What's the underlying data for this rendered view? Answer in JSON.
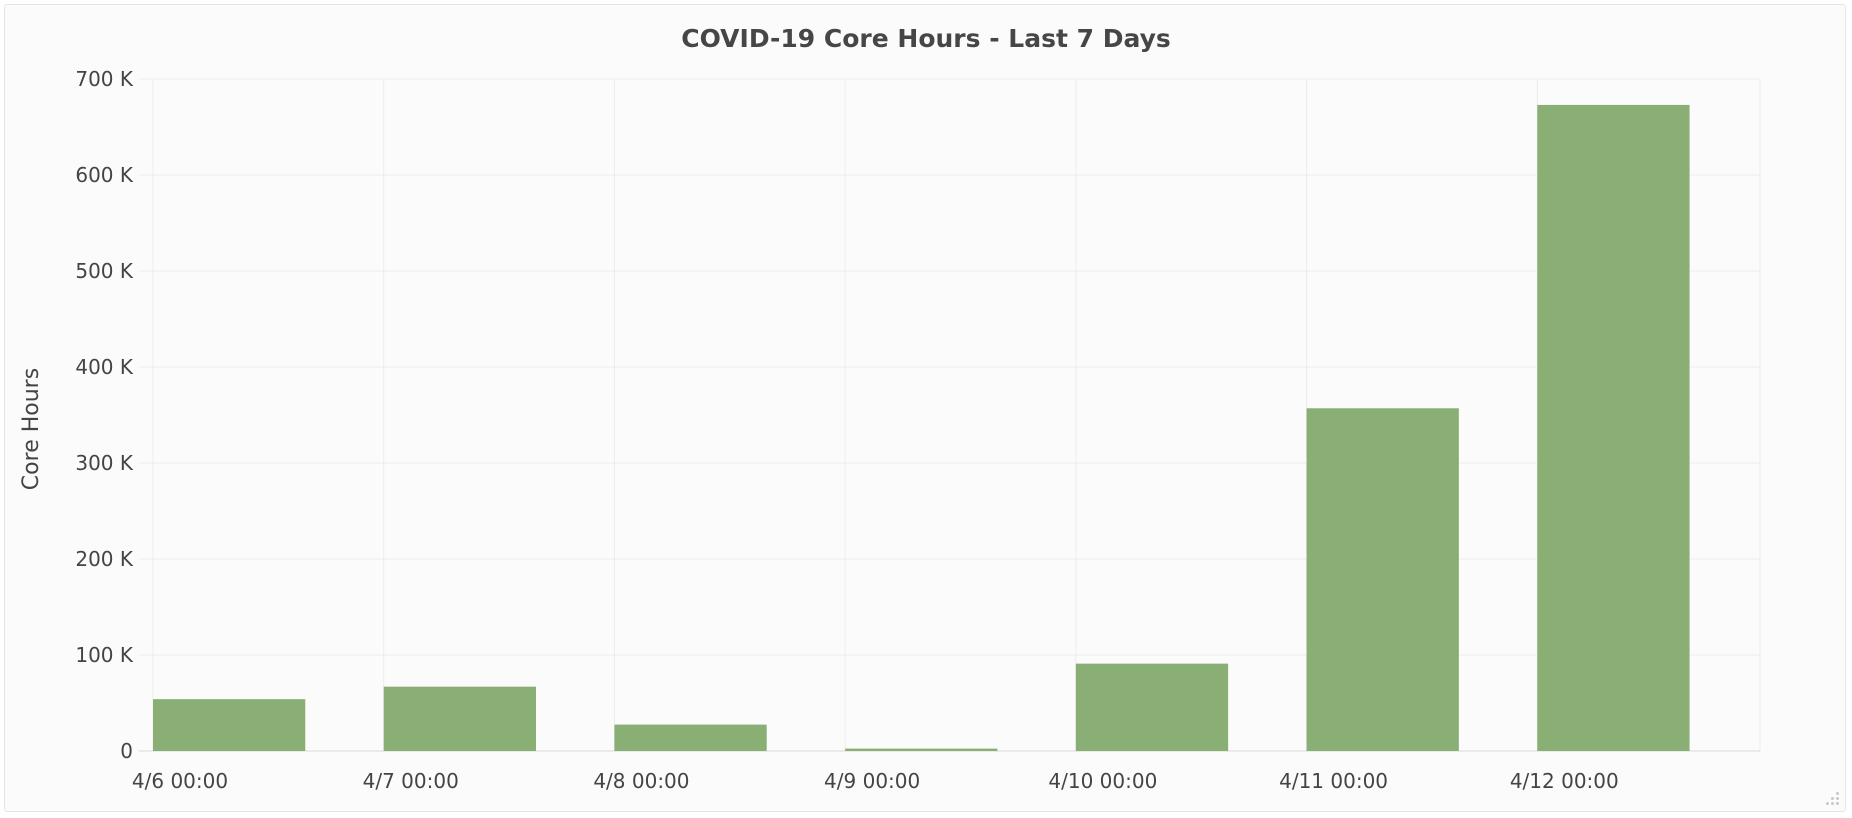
{
  "chart_data": {
    "type": "bar",
    "title": "COVID-19 Core Hours - Last 7 Days",
    "xlabel": "",
    "ylabel": "Core Hours",
    "categories": [
      "4/6 00:00",
      "4/7 00:00",
      "4/8 00:00",
      "4/9 00:00",
      "4/10 00:00",
      "4/11 00:00",
      "4/12 00:00"
    ],
    "values": [
      54000,
      67000,
      27500,
      2500,
      91000,
      357000,
      673000
    ],
    "ylim": [
      0,
      700000
    ],
    "yticks": [
      0,
      100000,
      200000,
      300000,
      400000,
      500000,
      600000,
      700000
    ],
    "ytick_labels": [
      "0",
      "100 K",
      "200 K",
      "300 K",
      "400 K",
      "500 K",
      "600 K",
      "700 K"
    ],
    "bar_color": "#8aaf74",
    "grid": true,
    "legend": "none"
  }
}
